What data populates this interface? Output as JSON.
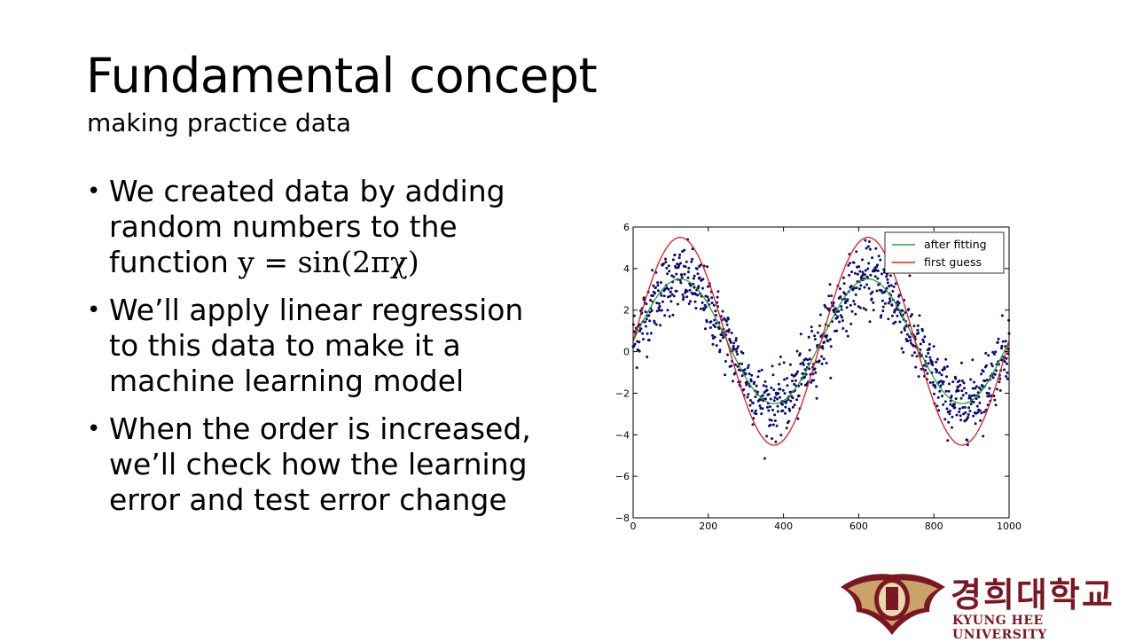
{
  "slide": {
    "title": "Fundamental concept",
    "subtitle": "making practice data"
  },
  "bullets": [
    {
      "text": "We created data by adding random numbers to the function ",
      "formula": "y = sin(2πχ)"
    },
    {
      "text": "We’ll apply linear regression to this data to make it a machine learning model"
    },
    {
      "text": "When the order is increased, we’ll check how the learning error and test error change"
    }
  ],
  "chart_data": {
    "type": "line",
    "xlim": [
      0,
      1000
    ],
    "ylim": [
      -8,
      6
    ],
    "xticks": [
      0,
      200,
      400,
      600,
      800,
      1000
    ],
    "yticks": [
      -8,
      -6,
      -4,
      -2,
      0,
      2,
      4,
      6
    ],
    "legend_position": "top-right",
    "grid": false,
    "series": [
      {
        "name": "after fitting",
        "color": "#2ca02c",
        "function": "0.5 + 3*sin(2*pi*x/500)"
      },
      {
        "name": "first guess",
        "color": "#e41a1c",
        "function": "0.5 + 5*sin(2*pi*x/500)"
      }
    ],
    "scatter": {
      "color": "#0b0b6e",
      "count": 1000,
      "x_range": [
        0,
        1000
      ],
      "noise_sd": 0.8
    }
  },
  "logo": {
    "korean": "경희대학교",
    "english": "KYUNG HEE UNIVERSITY",
    "primary_color": "#7a1722"
  }
}
